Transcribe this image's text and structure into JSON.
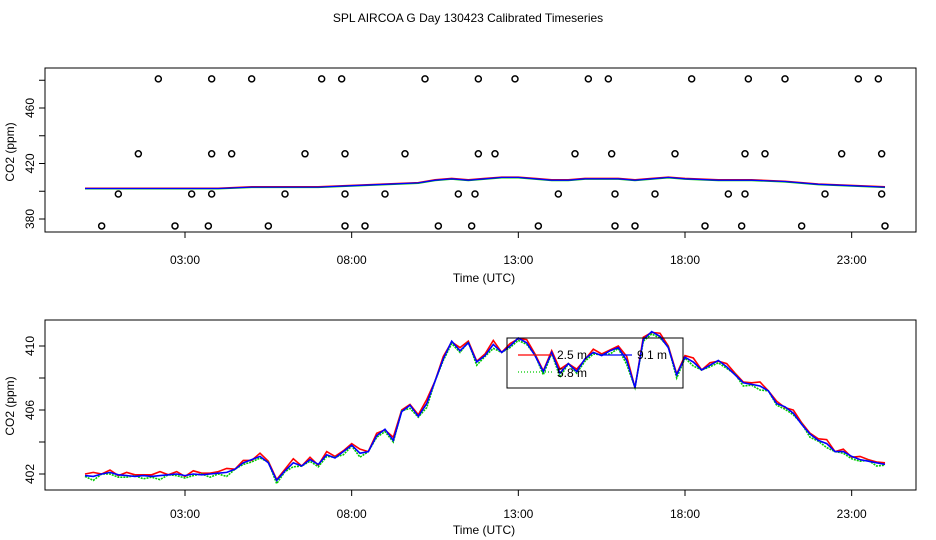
{
  "title": "SPL AIRCOA G  Day 130423  Calibrated Timeseries",
  "chart_data": [
    {
      "type": "scatter+line",
      "xlabel": "Time (UTC)",
      "ylabel": "CO2 (ppm)",
      "xlim": [
        0,
        25
      ],
      "ylim": [
        370,
        485
      ],
      "xticks": [
        3,
        8,
        13,
        18,
        23
      ],
      "xtick_labels": [
        "03:00",
        "08:00",
        "13:00",
        "18:00",
        "23:00"
      ],
      "yticks": [
        380,
        420,
        460
      ],
      "ytick_labels": [
        "380",
        "420",
        "460"
      ],
      "calibration_points": {
        "levels": [
          375,
          398,
          427,
          481
        ],
        "times": {
          "375": [
            0.5,
            2.7,
            3.7,
            5.5,
            7.8,
            8.4,
            10.6,
            11.6,
            13.6,
            15.9,
            16.5,
            18.6,
            19.7,
            21.5,
            24.0
          ],
          "398": [
            1.0,
            3.2,
            3.8,
            6.0,
            7.8,
            9.0,
            11.2,
            11.7,
            14.2,
            15.9,
            17.1,
            19.3,
            19.8,
            22.2,
            23.9
          ],
          "427": [
            1.6,
            3.8,
            4.4,
            6.6,
            7.8,
            9.6,
            11.8,
            12.3,
            14.7,
            15.8,
            17.7,
            19.8,
            20.4,
            22.7,
            23.9
          ],
          "481": [
            2.2,
            3.8,
            5.0,
            7.1,
            7.7,
            10.2,
            11.8,
            12.9,
            15.1,
            15.7,
            18.2,
            19.9,
            21.0,
            23.2,
            23.8
          ]
        }
      },
      "series": [
        {
          "name": "2.5 m",
          "color": "#ff0000"
        },
        {
          "name": "5.8 m",
          "color": "#00cc00"
        },
        {
          "name": "9.1 m",
          "color": "#0000ff"
        }
      ],
      "smooth_trace": {
        "x": [
          0,
          1.0,
          2.0,
          3.0,
          4.0,
          5.0,
          6.0,
          7.0,
          8.0,
          9.0,
          10.0,
          10.5,
          11.0,
          11.5,
          12.0,
          12.5,
          13.0,
          13.5,
          14.0,
          14.5,
          15.0,
          15.5,
          16.0,
          16.5,
          17.0,
          17.5,
          18.0,
          19.0,
          20.0,
          21.0,
          22.0,
          23.0,
          24.0
        ],
        "y": [
          402,
          402,
          402,
          402,
          402,
          403,
          403,
          403,
          404,
          405,
          406,
          408,
          409,
          408,
          409,
          410,
          410,
          409,
          408,
          408,
          409,
          409,
          409,
          408,
          409,
          410,
          409,
          408,
          408,
          407,
          405,
          404,
          403
        ]
      }
    },
    {
      "type": "line",
      "xlabel": "Time (UTC)",
      "ylabel": "CO2 (ppm)",
      "xlim": [
        0,
        25
      ],
      "ylim": [
        401.2,
        411.6
      ],
      "xticks": [
        3,
        8,
        13,
        18,
        23
      ],
      "xtick_labels": [
        "03:00",
        "08:00",
        "13:00",
        "18:00",
        "23:00"
      ],
      "yticks": [
        402,
        406,
        410
      ],
      "ytick_labels": [
        "402",
        "406",
        "410"
      ],
      "legend": {
        "placement": "top-center",
        "entries": [
          {
            "label": "2.5 m",
            "color": "#ff0000",
            "style": "solid"
          },
          {
            "label": "5.8 m",
            "color": "#00cc00",
            "style": "dotted"
          },
          {
            "label": "9.1 m",
            "color": "#0000ff",
            "style": "solid"
          }
        ]
      },
      "x": [
        0,
        0.25,
        0.5,
        0.75,
        1.0,
        1.25,
        1.5,
        1.75,
        2.0,
        2.25,
        2.5,
        2.75,
        3.0,
        3.25,
        3.5,
        3.75,
        4.0,
        4.25,
        4.5,
        4.75,
        5.0,
        5.25,
        5.5,
        5.75,
        6.0,
        6.25,
        6.5,
        6.75,
        7.0,
        7.25,
        7.5,
        7.75,
        8.0,
        8.25,
        8.5,
        8.75,
        9.0,
        9.25,
        9.5,
        9.75,
        10.0,
        10.25,
        10.5,
        10.75,
        11.0,
        11.25,
        11.5,
        11.75,
        12.0,
        12.25,
        12.5,
        12.75,
        13.0,
        13.25,
        13.5,
        13.75,
        14.0,
        14.25,
        14.5,
        14.75,
        15.0,
        15.25,
        15.5,
        15.75,
        16.0,
        16.25,
        16.5,
        16.75,
        17.0,
        17.25,
        17.5,
        17.75,
        18.0,
        18.25,
        18.5,
        18.75,
        19.0,
        19.25,
        19.5,
        19.75,
        20.0,
        20.25,
        20.5,
        20.75,
        21.0,
        21.25,
        21.5,
        21.75,
        22.0,
        22.25,
        22.5,
        22.75,
        23.0,
        23.25,
        23.5,
        23.75,
        24.0
      ],
      "base": [
        401.9,
        401.85,
        402.0,
        402.1,
        401.95,
        401.9,
        401.85,
        401.9,
        401.85,
        401.9,
        401.95,
        402.0,
        401.9,
        402.0,
        401.95,
        402.0,
        402.05,
        402.1,
        402.3,
        402.7,
        402.9,
        403.1,
        402.7,
        401.6,
        402.2,
        402.7,
        402.5,
        402.9,
        402.6,
        403.2,
        403.0,
        403.4,
        403.8,
        403.3,
        403.4,
        404.4,
        404.8,
        404.1,
        405.9,
        406.3,
        405.6,
        406.4,
        407.8,
        409.2,
        410.3,
        409.7,
        410.2,
        409.0,
        409.4,
        410.1,
        409.6,
        410.0,
        410.5,
        410.2,
        409.4,
        408.4,
        409.6,
        408.3,
        408.9,
        408.4,
        409.2,
        409.6,
        409.4,
        409.7,
        409.9,
        409.1,
        407.4,
        410.4,
        410.9,
        410.6,
        409.9,
        408.2,
        409.3,
        409.0,
        408.5,
        408.8,
        409.1,
        408.7,
        408.2,
        407.7,
        407.6,
        407.5,
        407.2,
        406.4,
        406.2,
        405.8,
        405.1,
        404.5,
        404.1,
        403.9,
        403.4,
        403.4,
        403.1,
        402.9,
        402.8,
        402.7,
        402.6
      ],
      "series": [
        {
          "name": "2.5 m",
          "color": "#ff0000",
          "offset": 0.1
        },
        {
          "name": "5.8 m",
          "color": "#00cc00",
          "offset": -0.1
        },
        {
          "name": "9.1 m",
          "color": "#0000ff",
          "offset": 0.0
        }
      ]
    }
  ]
}
